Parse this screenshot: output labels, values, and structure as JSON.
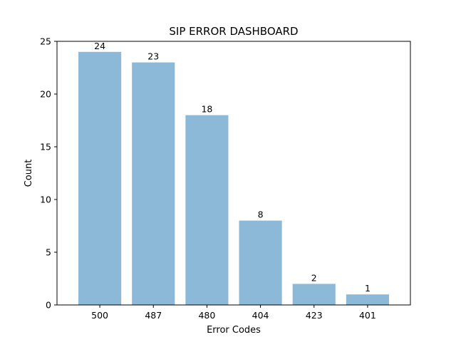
{
  "chart_data": {
    "type": "bar",
    "title": "SIP ERROR DASHBOARD",
    "xlabel": "Error Codes",
    "ylabel": "Count",
    "categories": [
      "500",
      "487",
      "480",
      "404",
      "423",
      "401"
    ],
    "values": [
      24,
      23,
      18,
      8,
      2,
      1
    ],
    "ylim": [
      0,
      25
    ],
    "yticks": [
      0,
      5,
      10,
      15,
      20,
      25
    ],
    "grid": false,
    "bar_color": "#8db9d9"
  }
}
